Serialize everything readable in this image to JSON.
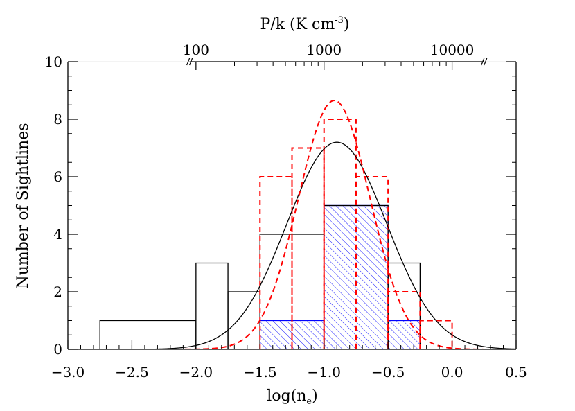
{
  "chart_data": {
    "type": "histogram",
    "xlabel_base": "log(n",
    "xlabel_sub": "e",
    "xlabel_close": ")",
    "ylabel": "Number of Sightlines",
    "top_axis": {
      "label_main": "P/k (K cm",
      "label_sup": "-3",
      "label_close": ")",
      "ticks": [
        {
          "label": "100",
          "x": -2.0
        },
        {
          "label": "1000",
          "x": -1.0
        },
        {
          "label": "10000",
          "x": 0.0
        }
      ]
    },
    "xlim": [
      -3.0,
      0.5
    ],
    "ylim": [
      0,
      10
    ],
    "x_ticks": [
      -3.0,
      -2.5,
      -2.0,
      -1.5,
      -1.0,
      -0.5,
      0.0,
      0.5
    ],
    "x_tick_labels": [
      "−3.0",
      "−2.5",
      "−2.0",
      "−1.5",
      "−1.0",
      "−0.5",
      "0.0",
      "0.5"
    ],
    "y_ticks": [
      0,
      2,
      4,
      6,
      8,
      10
    ],
    "y_tick_labels": [
      "0",
      "2",
      "4",
      "6",
      "8",
      "10"
    ],
    "series": [
      {
        "style": "solid-black-histogram",
        "color": "#000000",
        "bin_edges": [
          -2.75,
          -2.0,
          -1.75,
          -1.5,
          -1.0,
          -0.5,
          -0.25
        ],
        "counts": [
          1,
          3,
          2,
          4,
          5,
          3
        ]
      },
      {
        "style": "dashed-red-histogram",
        "color": "#ff0000",
        "bin_edges": [
          -1.5,
          -1.25,
          -1.0,
          -0.75,
          -0.5,
          -0.25,
          0.0
        ],
        "counts": [
          6,
          7,
          8,
          6,
          2,
          1
        ]
      },
      {
        "style": "hatched-blue-histogram",
        "color": "#0000ff",
        "bin_edges": [
          -1.5,
          -1.0,
          -0.5,
          -0.25
        ],
        "counts": [
          1,
          5,
          1
        ]
      },
      {
        "style": "solid-black-gaussian",
        "color": "#000000",
        "mean": -0.9,
        "sigma": 0.39,
        "amplitude": 7.2
      },
      {
        "style": "dashed-red-gaussian",
        "color": "#ff0000",
        "mean": -0.92,
        "sigma": 0.28,
        "amplitude": 8.65
      }
    ]
  }
}
